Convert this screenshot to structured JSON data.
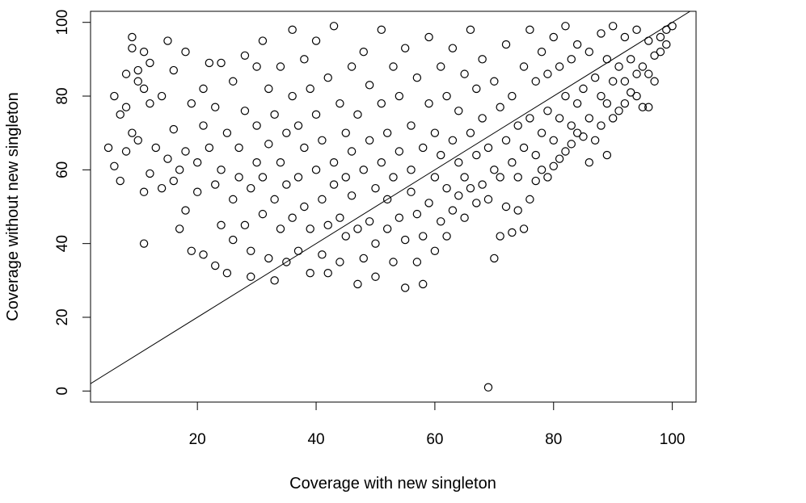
{
  "chart_data": {
    "type": "scatter",
    "title": "",
    "xlabel": "Coverage with new singleton",
    "ylabel": "Coverage without new singleton",
    "xlim": [
      2,
      104
    ],
    "ylim": [
      -3,
      103
    ],
    "xticks": [
      20,
      40,
      60,
      80,
      100
    ],
    "yticks": [
      0,
      20,
      40,
      60,
      80,
      100
    ],
    "grid": false,
    "legend": "none",
    "marker": "open-circle",
    "point_color": "#000000",
    "reference_line": {
      "type": "identity",
      "slope": 1,
      "intercept": 0
    },
    "series": [
      {
        "points": [
          [
            5,
            66
          ],
          [
            6,
            80
          ],
          [
            6,
            61
          ],
          [
            7,
            57
          ],
          [
            7,
            75
          ],
          [
            8,
            65
          ],
          [
            8,
            77
          ],
          [
            8,
            86
          ],
          [
            9,
            93
          ],
          [
            9,
            70
          ],
          [
            9,
            96
          ],
          [
            10,
            84
          ],
          [
            10,
            68
          ],
          [
            10,
            87
          ],
          [
            11,
            92
          ],
          [
            11,
            40
          ],
          [
            11,
            54
          ],
          [
            11,
            82
          ],
          [
            12,
            89
          ],
          [
            12,
            59
          ],
          [
            12,
            78
          ],
          [
            13,
            66
          ],
          [
            14,
            55
          ],
          [
            14,
            80
          ],
          [
            15,
            63
          ],
          [
            15,
            95
          ],
          [
            16,
            57
          ],
          [
            16,
            71
          ],
          [
            16,
            87
          ],
          [
            17,
            44
          ],
          [
            17,
            60
          ],
          [
            18,
            49
          ],
          [
            18,
            65
          ],
          [
            18,
            92
          ],
          [
            19,
            38
          ],
          [
            19,
            78
          ],
          [
            20,
            54
          ],
          [
            20,
            62
          ],
          [
            21,
            72
          ],
          [
            21,
            37
          ],
          [
            21,
            82
          ],
          [
            22,
            66
          ],
          [
            22,
            89
          ],
          [
            23,
            34
          ],
          [
            23,
            56
          ],
          [
            23,
            77
          ],
          [
            24,
            45
          ],
          [
            24,
            60
          ],
          [
            24,
            89
          ],
          [
            25,
            70
          ],
          [
            25,
            32
          ],
          [
            26,
            41
          ],
          [
            26,
            52
          ],
          [
            26,
            84
          ],
          [
            27,
            58
          ],
          [
            27,
            66
          ],
          [
            28,
            45
          ],
          [
            28,
            76
          ],
          [
            28,
            91
          ],
          [
            29,
            31
          ],
          [
            29,
            38
          ],
          [
            29,
            55
          ],
          [
            30,
            62
          ],
          [
            30,
            72
          ],
          [
            30,
            88
          ],
          [
            31,
            48
          ],
          [
            31,
            58
          ],
          [
            31,
            95
          ],
          [
            32,
            36
          ],
          [
            32,
            67
          ],
          [
            32,
            82
          ],
          [
            33,
            30
          ],
          [
            33,
            52
          ],
          [
            33,
            75
          ],
          [
            34,
            44
          ],
          [
            34,
            62
          ],
          [
            34,
            88
          ],
          [
            35,
            56
          ],
          [
            35,
            35
          ],
          [
            35,
            70
          ],
          [
            36,
            47
          ],
          [
            36,
            80
          ],
          [
            36,
            98
          ],
          [
            37,
            58
          ],
          [
            37,
            38
          ],
          [
            37,
            72
          ],
          [
            38,
            50
          ],
          [
            38,
            66
          ],
          [
            38,
            90
          ],
          [
            39,
            32
          ],
          [
            39,
            44
          ],
          [
            39,
            82
          ],
          [
            40,
            60
          ],
          [
            40,
            75
          ],
          [
            40,
            95
          ],
          [
            41,
            37
          ],
          [
            41,
            52
          ],
          [
            41,
            68
          ],
          [
            42,
            32
          ],
          [
            42,
            45
          ],
          [
            42,
            85
          ],
          [
            43,
            62
          ],
          [
            43,
            56
          ],
          [
            43,
            99
          ],
          [
            44,
            35
          ],
          [
            44,
            47
          ],
          [
            44,
            78
          ],
          [
            45,
            58
          ],
          [
            45,
            70
          ],
          [
            45,
            42
          ],
          [
            46,
            88
          ],
          [
            46,
            65
          ],
          [
            46,
            53
          ],
          [
            47,
            29
          ],
          [
            47,
            44
          ],
          [
            47,
            75
          ],
          [
            48,
            36
          ],
          [
            48,
            60
          ],
          [
            48,
            92
          ],
          [
            49,
            46
          ],
          [
            49,
            68
          ],
          [
            49,
            83
          ],
          [
            50,
            31
          ],
          [
            50,
            40
          ],
          [
            50,
            55
          ],
          [
            51,
            62
          ],
          [
            51,
            78
          ],
          [
            51,
            98
          ],
          [
            52,
            44
          ],
          [
            52,
            52
          ],
          [
            52,
            70
          ],
          [
            53,
            35
          ],
          [
            53,
            58
          ],
          [
            53,
            88
          ],
          [
            54,
            47
          ],
          [
            54,
            65
          ],
          [
            54,
            80
          ],
          [
            55,
            28
          ],
          [
            55,
            41
          ],
          [
            55,
            93
          ],
          [
            56,
            54
          ],
          [
            56,
            72
          ],
          [
            56,
            60
          ],
          [
            57,
            35
          ],
          [
            57,
            48
          ],
          [
            57,
            85
          ],
          [
            58,
            29
          ],
          [
            58,
            42
          ],
          [
            58,
            66
          ],
          [
            59,
            51
          ],
          [
            59,
            78
          ],
          [
            59,
            96
          ],
          [
            60,
            38
          ],
          [
            60,
            58
          ],
          [
            60,
            70
          ],
          [
            61,
            46
          ],
          [
            61,
            64
          ],
          [
            61,
            88
          ],
          [
            62,
            42
          ],
          [
            62,
            55
          ],
          [
            62,
            80
          ],
          [
            63,
            49
          ],
          [
            63,
            68
          ],
          [
            63,
            93
          ],
          [
            64,
            53
          ],
          [
            64,
            62
          ],
          [
            64,
            76
          ],
          [
            65,
            47
          ],
          [
            65,
            58
          ],
          [
            65,
            86
          ],
          [
            66,
            55
          ],
          [
            66,
            70
          ],
          [
            66,
            98
          ],
          [
            67,
            51
          ],
          [
            67,
            64
          ],
          [
            67,
            82
          ],
          [
            68,
            56
          ],
          [
            68,
            74
          ],
          [
            68,
            90
          ],
          [
            69,
            1
          ],
          [
            69,
            52
          ],
          [
            69,
            66
          ],
          [
            70,
            36
          ],
          [
            70,
            60
          ],
          [
            70,
            84
          ],
          [
            71,
            42
          ],
          [
            71,
            58
          ],
          [
            71,
            77
          ],
          [
            72,
            50
          ],
          [
            72,
            68
          ],
          [
            72,
            94
          ],
          [
            73,
            43
          ],
          [
            73,
            62
          ],
          [
            73,
            80
          ],
          [
            74,
            49
          ],
          [
            74,
            58
          ],
          [
            74,
            72
          ],
          [
            75,
            44
          ],
          [
            75,
            66
          ],
          [
            75,
            88
          ],
          [
            76,
            52
          ],
          [
            76,
            74
          ],
          [
            76,
            98
          ],
          [
            77,
            57
          ],
          [
            77,
            64
          ],
          [
            77,
            84
          ],
          [
            78,
            60
          ],
          [
            78,
            70
          ],
          [
            78,
            92
          ],
          [
            79,
            58
          ],
          [
            79,
            76
          ],
          [
            79,
            86
          ],
          [
            80,
            61
          ],
          [
            80,
            68
          ],
          [
            80,
            96
          ],
          [
            81,
            63
          ],
          [
            81,
            74
          ],
          [
            81,
            88
          ],
          [
            82,
            65
          ],
          [
            82,
            80
          ],
          [
            82,
            99
          ],
          [
            83,
            67
          ],
          [
            83,
            72
          ],
          [
            83,
            90
          ],
          [
            84,
            70
          ],
          [
            84,
            78
          ],
          [
            84,
            94
          ],
          [
            85,
            69
          ],
          [
            85,
            82
          ],
          [
            86,
            62
          ],
          [
            86,
            74
          ],
          [
            86,
            92
          ],
          [
            87,
            68
          ],
          [
            87,
            85
          ],
          [
            88,
            72
          ],
          [
            88,
            80
          ],
          [
            88,
            97
          ],
          [
            89,
            64
          ],
          [
            89,
            78
          ],
          [
            89,
            90
          ],
          [
            90,
            74
          ],
          [
            90,
            84
          ],
          [
            90,
            99
          ],
          [
            91,
            76
          ],
          [
            91,
            88
          ],
          [
            92,
            78
          ],
          [
            92,
            84
          ],
          [
            92,
            96
          ],
          [
            93,
            81
          ],
          [
            93,
            90
          ],
          [
            94,
            80
          ],
          [
            94,
            86
          ],
          [
            94,
            98
          ],
          [
            95,
            77
          ],
          [
            95,
            88
          ],
          [
            96,
            77
          ],
          [
            96,
            86
          ],
          [
            96,
            95
          ],
          [
            97,
            84
          ],
          [
            97,
            91
          ],
          [
            98,
            92
          ],
          [
            98,
            96
          ],
          [
            99,
            94
          ],
          [
            99,
            98
          ],
          [
            100,
            99
          ]
        ]
      }
    ]
  }
}
